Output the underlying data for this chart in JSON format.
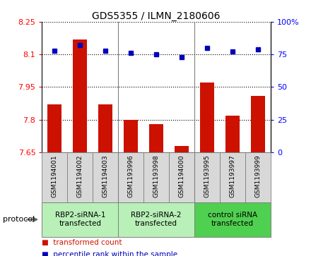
{
  "title": "GDS5355 / ILMN_2180606",
  "samples": [
    "GSM1194001",
    "GSM1194002",
    "GSM1194003",
    "GSM1193996",
    "GSM1193998",
    "GSM1194000",
    "GSM1193995",
    "GSM1193997",
    "GSM1193999"
  ],
  "red_values": [
    7.87,
    8.17,
    7.87,
    7.8,
    7.78,
    7.68,
    7.97,
    7.82,
    7.91
  ],
  "blue_values": [
    78,
    82,
    78,
    76,
    75,
    73,
    80,
    77,
    79
  ],
  "ylim_left": [
    7.65,
    8.25
  ],
  "ylim_right": [
    0,
    100
  ],
  "yticks_left": [
    7.65,
    7.8,
    7.95,
    8.1,
    8.25
  ],
  "ytick_labels_left": [
    "7.65",
    "7.8",
    "7.95",
    "8.1",
    "8.25"
  ],
  "yticks_right": [
    0,
    25,
    50,
    75,
    100
  ],
  "ytick_labels_right": [
    "0",
    "25",
    "50",
    "75",
    "100%"
  ],
  "group_labels": [
    "RBP2-siRNA-1\ntransfected",
    "RBP2-siRNA-2\ntransfected",
    "control siRNA\ntransfected"
  ],
  "group_ranges": [
    [
      0,
      3
    ],
    [
      3,
      6
    ],
    [
      6,
      9
    ]
  ],
  "group_colors_proto": [
    "#b8f0b8",
    "#b8f0b8",
    "#50d050"
  ],
  "sample_cell_color": "#d8d8d8",
  "bar_color": "#cc1100",
  "dot_color": "#0000bb",
  "protocol_label": "protocol",
  "legend1_text": "transformed count",
  "legend2_text": "percentile rank within the sample"
}
